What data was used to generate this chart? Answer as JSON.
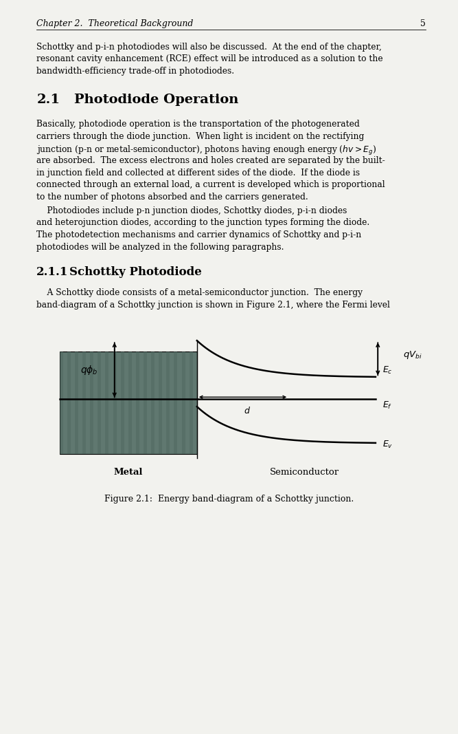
{
  "page_bg": "#f2f2ee",
  "fig_width": 6.67,
  "fig_height": 10.67,
  "header_text": "Chapter 2.  Theoretical Background",
  "header_page": "5",
  "caption": "Figure 2.1:  Energy band-diagram of a Schottky junction.",
  "metal_color": "#607870",
  "metal_stripe_color": "#506860"
}
